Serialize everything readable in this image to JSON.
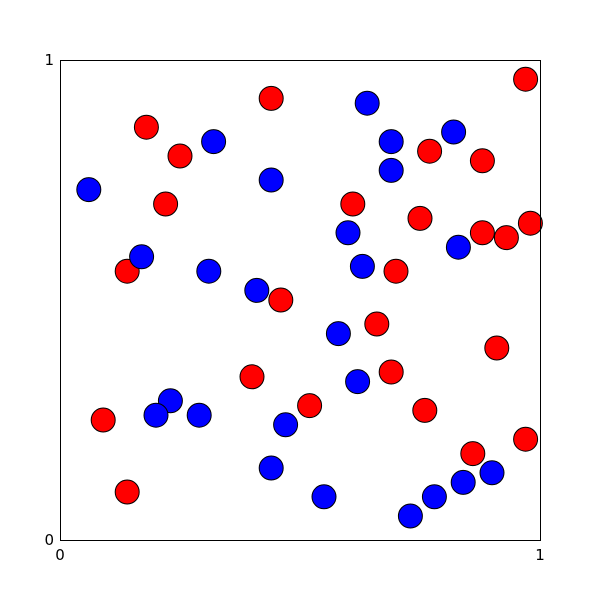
{
  "chart_data": {
    "type": "scatter",
    "title": "",
    "xlabel": "",
    "ylabel": "",
    "xlim": [
      0,
      1
    ],
    "ylim": [
      0,
      1
    ],
    "grid": false,
    "x_ticks": [
      "0",
      "1"
    ],
    "y_ticks": [
      "0",
      "1"
    ],
    "series": [
      {
        "color": "#ff0000",
        "points": [
          {
            "x": 0.97,
            "y": 0.96
          },
          {
            "x": 0.44,
            "y": 0.92
          },
          {
            "x": 0.18,
            "y": 0.86
          },
          {
            "x": 0.25,
            "y": 0.8
          },
          {
            "x": 0.77,
            "y": 0.81
          },
          {
            "x": 0.88,
            "y": 0.79
          },
          {
            "x": 0.22,
            "y": 0.7
          },
          {
            "x": 0.61,
            "y": 0.7
          },
          {
            "x": 0.75,
            "y": 0.67
          },
          {
            "x": 0.88,
            "y": 0.64
          },
          {
            "x": 0.93,
            "y": 0.63
          },
          {
            "x": 0.98,
            "y": 0.66
          },
          {
            "x": 0.14,
            "y": 0.56
          },
          {
            "x": 0.7,
            "y": 0.56
          },
          {
            "x": 0.46,
            "y": 0.5
          },
          {
            "x": 0.66,
            "y": 0.45
          },
          {
            "x": 0.91,
            "y": 0.4
          },
          {
            "x": 0.4,
            "y": 0.34
          },
          {
            "x": 0.69,
            "y": 0.35
          },
          {
            "x": 0.52,
            "y": 0.28
          },
          {
            "x": 0.76,
            "y": 0.27
          },
          {
            "x": 0.09,
            "y": 0.25
          },
          {
            "x": 0.86,
            "y": 0.18
          },
          {
            "x": 0.97,
            "y": 0.21
          },
          {
            "x": 0.14,
            "y": 0.1
          }
        ]
      },
      {
        "color": "#0000ff",
        "points": [
          {
            "x": 0.64,
            "y": 0.91
          },
          {
            "x": 0.69,
            "y": 0.83
          },
          {
            "x": 0.82,
            "y": 0.85
          },
          {
            "x": 0.32,
            "y": 0.83
          },
          {
            "x": 0.69,
            "y": 0.77
          },
          {
            "x": 0.44,
            "y": 0.75
          },
          {
            "x": 0.06,
            "y": 0.73
          },
          {
            "x": 0.6,
            "y": 0.64
          },
          {
            "x": 0.83,
            "y": 0.61
          },
          {
            "x": 0.17,
            "y": 0.59
          },
          {
            "x": 0.63,
            "y": 0.57
          },
          {
            "x": 0.31,
            "y": 0.56
          },
          {
            "x": 0.41,
            "y": 0.52
          },
          {
            "x": 0.58,
            "y": 0.43
          },
          {
            "x": 0.62,
            "y": 0.33
          },
          {
            "x": 0.23,
            "y": 0.29
          },
          {
            "x": 0.2,
            "y": 0.26
          },
          {
            "x": 0.29,
            "y": 0.26
          },
          {
            "x": 0.47,
            "y": 0.24
          },
          {
            "x": 0.44,
            "y": 0.15
          },
          {
            "x": 0.55,
            "y": 0.09
          },
          {
            "x": 0.78,
            "y": 0.09
          },
          {
            "x": 0.84,
            "y": 0.12
          },
          {
            "x": 0.9,
            "y": 0.14
          },
          {
            "x": 0.73,
            "y": 0.05
          }
        ]
      }
    ]
  }
}
